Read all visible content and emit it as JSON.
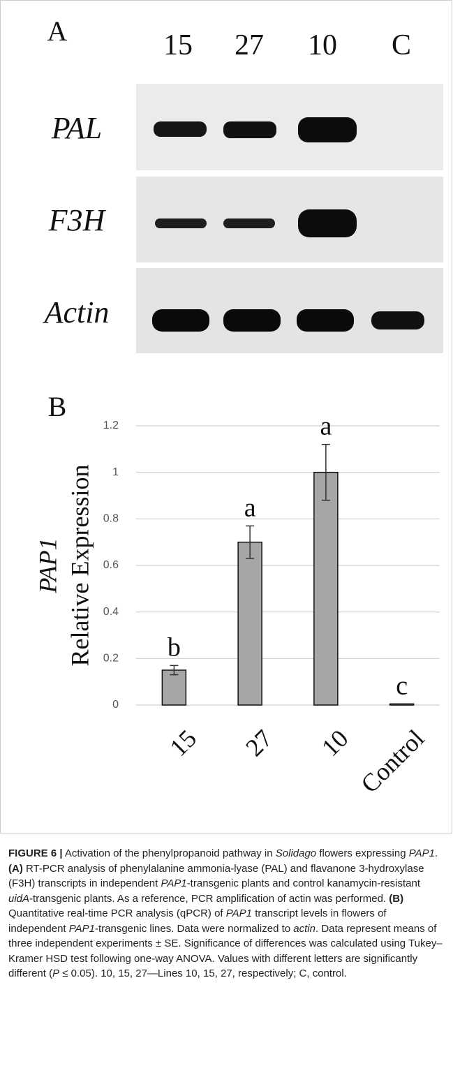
{
  "panel_a": {
    "label": "A",
    "lanes": [
      "15",
      "27",
      "10",
      "C"
    ],
    "rows": [
      "PAL",
      "F3H",
      "Actin"
    ]
  },
  "chart_data": {
    "type": "bar",
    "panel_label": "B",
    "ylabel": [
      "PAP1",
      "Relative Expression"
    ],
    "categories": [
      "15",
      "27",
      "10",
      "Control"
    ],
    "values": [
      0.15,
      0.7,
      1.0,
      0.005
    ],
    "errors": [
      0.02,
      0.07,
      0.12,
      0
    ],
    "annotations": [
      "b",
      "a",
      "a",
      "c"
    ],
    "color": "#a6a6a6",
    "ylim": [
      0,
      1.2
    ],
    "yticks": [
      0,
      0.2,
      0.4,
      0.6,
      0.8,
      1,
      1.2
    ],
    "grid": true
  },
  "caption": [
    {
      "text": "FIGURE 6 |",
      "style": "bold"
    },
    {
      "text": " Activation of the phenylpropanoid pathway in "
    },
    {
      "text": "Solidago",
      "style": "italic"
    },
    {
      "text": " flowers expressing "
    },
    {
      "text": "PAP1",
      "style": "italic"
    },
    {
      "text": ". "
    },
    {
      "text": "(A)",
      "style": "bold"
    },
    {
      "text": " RT-PCR analysis of phenylalanine ammonia-lyase (PAL) and flavanone 3-hydroxylase (F3H) transcripts in independent "
    },
    {
      "text": "PAP1",
      "style": "italic"
    },
    {
      "text": "-transgenic plants and control kanamycin-resistant "
    },
    {
      "text": "uidA",
      "style": "italic"
    },
    {
      "text": "-transgenic plants. As a reference, PCR amplification of actin was performed. "
    },
    {
      "text": "(B)",
      "style": "bold"
    },
    {
      "text": " Quantitative real-time PCR analysis (qPCR) of "
    },
    {
      "text": "PAP1",
      "style": "italic"
    },
    {
      "text": " transcript levels in flowers of independent "
    },
    {
      "text": "PAP1",
      "style": "italic"
    },
    {
      "text": "-transgenic lines. Data were normalized to "
    },
    {
      "text": "actin",
      "style": "italic"
    },
    {
      "text": ". Data represent means of three independent experiments ± SE. Significance of differences was calculated using Tukey–Kramer HSD test following one-way ANOVA. Values with different letters are significantly different ("
    },
    {
      "text": "P",
      "style": "italic"
    },
    {
      "text": " ≤ 0.05). 10, 15, 27—Lines 10, 15, 27, respectively; C, control."
    }
  ]
}
